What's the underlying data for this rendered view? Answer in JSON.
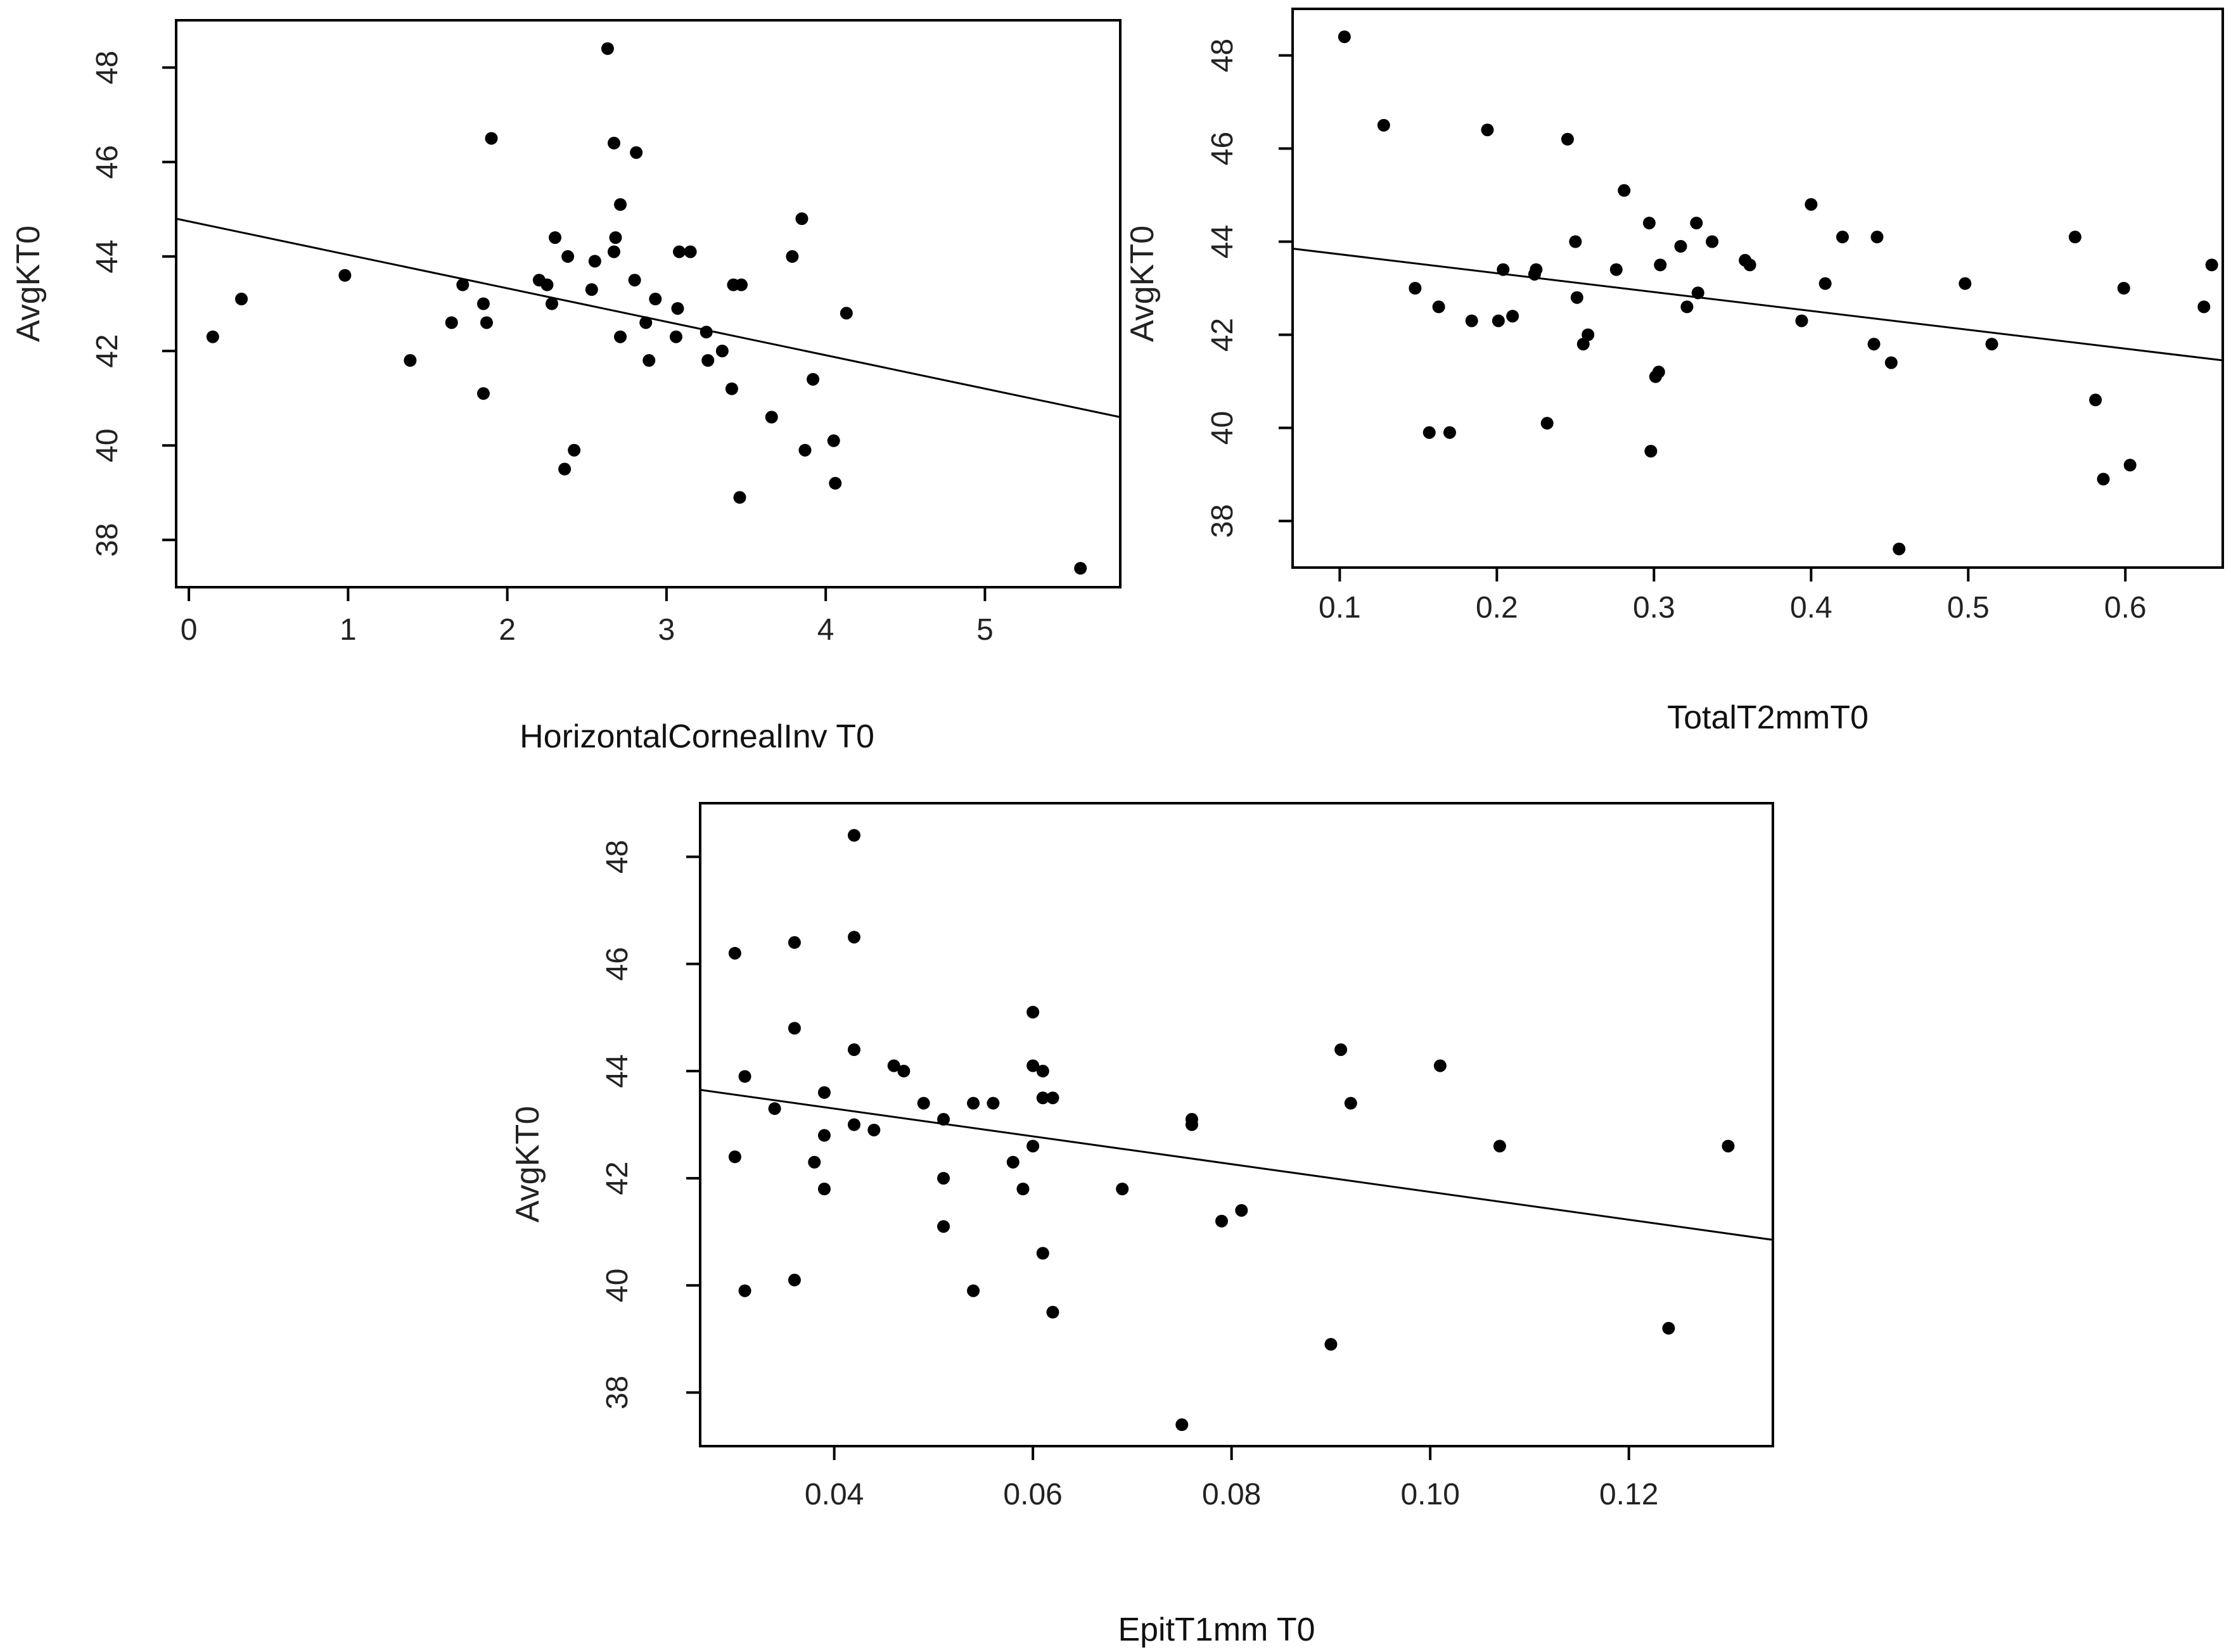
{
  "chart_data": [
    {
      "type": "scatter",
      "id": "plot1",
      "xlabel": "HorizontalCornealInv T0",
      "ylabel": "AvgKT0",
      "xlim": [
        -0.08,
        5.85
      ],
      "ylim": [
        37.0,
        49.0
      ],
      "xticks": [
        0,
        1,
        2,
        3,
        4,
        5
      ],
      "yticks": [
        38,
        40,
        42,
        44,
        46,
        48
      ],
      "regression": {
        "x": [
          -0.08,
          5.85
        ],
        "y": [
          44.8,
          40.6
        ]
      },
      "points": [
        [
          0.15,
          42.3
        ],
        [
          0.33,
          43.1
        ],
        [
          0.98,
          43.6
        ],
        [
          1.39,
          41.8
        ],
        [
          1.65,
          42.6
        ],
        [
          1.72,
          43.4
        ],
        [
          1.85,
          41.1
        ],
        [
          1.85,
          43.0
        ],
        [
          1.87,
          42.6
        ],
        [
          1.9,
          46.5
        ],
        [
          2.2,
          43.5
        ],
        [
          2.25,
          43.4
        ],
        [
          2.28,
          43.0
        ],
        [
          2.3,
          44.4
        ],
        [
          2.36,
          39.5
        ],
        [
          2.38,
          44.0
        ],
        [
          2.42,
          39.9
        ],
        [
          2.53,
          43.3
        ],
        [
          2.55,
          43.9
        ],
        [
          2.63,
          48.4
        ],
        [
          2.67,
          46.4
        ],
        [
          2.67,
          44.1
        ],
        [
          2.68,
          44.4
        ],
        [
          2.71,
          45.1
        ],
        [
          2.71,
          42.3
        ],
        [
          2.8,
          43.5
        ],
        [
          2.81,
          46.2
        ],
        [
          2.87,
          42.6
        ],
        [
          2.89,
          41.8
        ],
        [
          2.93,
          43.1
        ],
        [
          3.06,
          42.3
        ],
        [
          3.07,
          42.9
        ],
        [
          3.08,
          44.1
        ],
        [
          3.15,
          44.1
        ],
        [
          3.25,
          42.4
        ],
        [
          3.26,
          41.8
        ],
        [
          3.35,
          42.0
        ],
        [
          3.41,
          41.2
        ],
        [
          3.42,
          43.4
        ],
        [
          3.46,
          38.9
        ],
        [
          3.47,
          43.4
        ],
        [
          3.66,
          40.6
        ],
        [
          3.79,
          44.0
        ],
        [
          3.85,
          44.8
        ],
        [
          3.87,
          39.9
        ],
        [
          3.92,
          41.4
        ],
        [
          4.05,
          40.1
        ],
        [
          4.06,
          39.2
        ],
        [
          4.13,
          42.8
        ],
        [
          5.6,
          37.4
        ]
      ]
    },
    {
      "type": "scatter",
      "id": "plot2",
      "xlabel": "TotalT2mmT0",
      "ylabel": "AvgKT0",
      "xlim": [
        0.07,
        0.662
      ],
      "ylim": [
        37.0,
        49.0
      ],
      "xticks": [
        0.1,
        0.2,
        0.3,
        0.4,
        0.5,
        0.6
      ],
      "yticks": [
        38,
        40,
        42,
        44,
        46,
        48
      ],
      "regression": {
        "x": [
          0.07,
          0.662
        ],
        "y": [
          43.85,
          41.45
        ]
      },
      "points": [
        [
          0.103,
          48.4
        ],
        [
          0.128,
          46.5
        ],
        [
          0.148,
          43.0
        ],
        [
          0.157,
          39.9
        ],
        [
          0.163,
          42.6
        ],
        [
          0.17,
          39.9
        ],
        [
          0.184,
          42.3
        ],
        [
          0.194,
          46.4
        ],
        [
          0.201,
          42.3
        ],
        [
          0.204,
          43.4
        ],
        [
          0.21,
          42.4
        ],
        [
          0.224,
          43.3
        ],
        [
          0.225,
          43.4
        ],
        [
          0.232,
          40.1
        ],
        [
          0.245,
          46.2
        ],
        [
          0.25,
          44.0
        ],
        [
          0.251,
          42.8
        ],
        [
          0.255,
          41.8
        ],
        [
          0.258,
          42.0
        ],
        [
          0.276,
          43.4
        ],
        [
          0.281,
          45.1
        ],
        [
          0.297,
          44.4
        ],
        [
          0.298,
          39.5
        ],
        [
          0.301,
          41.1
        ],
        [
          0.303,
          41.2
        ],
        [
          0.304,
          43.5
        ],
        [
          0.317,
          43.9
        ],
        [
          0.321,
          42.6
        ],
        [
          0.327,
          44.4
        ],
        [
          0.328,
          42.9
        ],
        [
          0.337,
          44.0
        ],
        [
          0.358,
          43.6
        ],
        [
          0.361,
          43.5
        ],
        [
          0.394,
          42.3
        ],
        [
          0.4,
          44.8
        ],
        [
          0.409,
          43.1
        ],
        [
          0.42,
          44.1
        ],
        [
          0.44,
          41.8
        ],
        [
          0.442,
          44.1
        ],
        [
          0.451,
          41.4
        ],
        [
          0.456,
          37.4
        ],
        [
          0.498,
          43.1
        ],
        [
          0.515,
          41.8
        ],
        [
          0.568,
          44.1
        ],
        [
          0.581,
          40.6
        ],
        [
          0.586,
          38.9
        ],
        [
          0.599,
          43.0
        ],
        [
          0.603,
          39.2
        ],
        [
          0.65,
          42.6
        ],
        [
          0.655,
          43.5
        ]
      ]
    },
    {
      "type": "scatter",
      "id": "plot3",
      "xlabel": "EpitT1mm T0",
      "ylabel": "AvgKT0",
      "xlim": [
        0.0265,
        0.1345
      ],
      "ylim": [
        37.0,
        49.0
      ],
      "xticks": [
        0.04,
        0.06,
        0.08,
        0.1,
        0.12
      ],
      "xticklabels": [
        "0.04",
        "0.06",
        "0.08",
        "0.10",
        "0.12"
      ],
      "yticks": [
        38,
        40,
        42,
        44,
        46,
        48
      ],
      "regression": {
        "x": [
          0.0265,
          0.1345
        ],
        "y": [
          43.65,
          40.85
        ]
      },
      "points": [
        [
          0.03,
          46.2
        ],
        [
          0.03,
          42.4
        ],
        [
          0.031,
          43.9
        ],
        [
          0.031,
          39.9
        ],
        [
          0.034,
          43.3
        ],
        [
          0.036,
          46.4
        ],
        [
          0.036,
          44.8
        ],
        [
          0.036,
          40.1
        ],
        [
          0.038,
          42.3
        ],
        [
          0.039,
          43.6
        ],
        [
          0.039,
          42.8
        ],
        [
          0.039,
          41.8
        ],
        [
          0.042,
          48.4
        ],
        [
          0.042,
          46.5
        ],
        [
          0.042,
          44.4
        ],
        [
          0.042,
          43.0
        ],
        [
          0.044,
          42.9
        ],
        [
          0.046,
          44.1
        ],
        [
          0.047,
          44.0
        ],
        [
          0.049,
          43.4
        ],
        [
          0.051,
          43.1
        ],
        [
          0.051,
          42.0
        ],
        [
          0.051,
          41.1
        ],
        [
          0.054,
          43.4
        ],
        [
          0.054,
          39.9
        ],
        [
          0.056,
          43.4
        ],
        [
          0.058,
          42.3
        ],
        [
          0.059,
          41.8
        ],
        [
          0.06,
          45.1
        ],
        [
          0.06,
          44.1
        ],
        [
          0.06,
          42.6
        ],
        [
          0.061,
          44.0
        ],
        [
          0.061,
          43.5
        ],
        [
          0.061,
          40.6
        ],
        [
          0.062,
          43.5
        ],
        [
          0.062,
          39.5
        ],
        [
          0.069,
          41.8
        ],
        [
          0.075,
          37.4
        ],
        [
          0.076,
          43.1
        ],
        [
          0.076,
          43.0
        ],
        [
          0.079,
          41.2
        ],
        [
          0.081,
          41.4
        ],
        [
          0.09,
          38.9
        ],
        [
          0.091,
          44.4
        ],
        [
          0.092,
          43.4
        ],
        [
          0.101,
          44.1
        ],
        [
          0.107,
          42.6
        ],
        [
          0.124,
          39.2
        ],
        [
          0.13,
          42.6
        ]
      ]
    }
  ]
}
